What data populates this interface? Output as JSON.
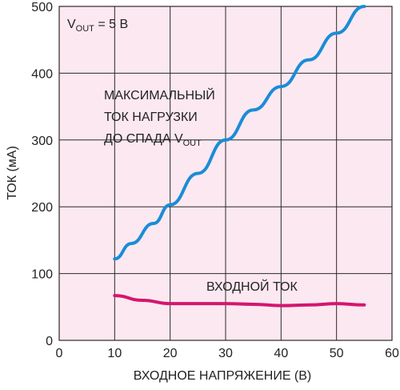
{
  "chart_data": {
    "type": "line",
    "x_axis": {
      "label": "ВХОДНОЕ НАПРЯЖЕНИЕ (В)",
      "min": 0,
      "max": 60,
      "ticks": [
        0,
        10,
        20,
        30,
        40,
        50,
        60
      ]
    },
    "y_axis": {
      "label": "ТОК (мА)",
      "min": 0,
      "max": 500,
      "ticks": [
        0,
        100,
        200,
        300,
        400,
        500
      ]
    },
    "grid": true,
    "background_color": "#fce8f0",
    "annotations": {
      "vout": {
        "prefix": "V",
        "sub": "OUT",
        "suffix": " = 5 В"
      },
      "max_load_line1": "МАКСИМАЛЬНЫЙ",
      "max_load_line2": "ТОК НАГРУЗКИ",
      "max_load_line3_prefix": "ДО СПАДА V",
      "max_load_line3_sub": "OUT",
      "input_current": "ВХОДНОЙ ТОК"
    },
    "series": [
      {
        "color": "#1a8cd8",
        "points": [
          [
            10,
            122
          ],
          [
            13,
            145
          ],
          [
            17,
            175
          ],
          [
            20,
            203
          ],
          [
            25,
            250
          ],
          [
            30,
            300
          ],
          [
            35,
            345
          ],
          [
            40,
            380
          ],
          [
            45,
            420
          ],
          [
            50,
            460
          ],
          [
            55,
            500
          ]
        ]
      },
      {
        "color": "#d4166f",
        "points": [
          [
            10,
            67
          ],
          [
            15,
            60
          ],
          [
            20,
            55
          ],
          [
            25,
            55
          ],
          [
            30,
            55
          ],
          [
            35,
            54
          ],
          [
            40,
            52
          ],
          [
            45,
            53
          ],
          [
            50,
            55
          ],
          [
            55,
            53
          ]
        ]
      }
    ]
  }
}
